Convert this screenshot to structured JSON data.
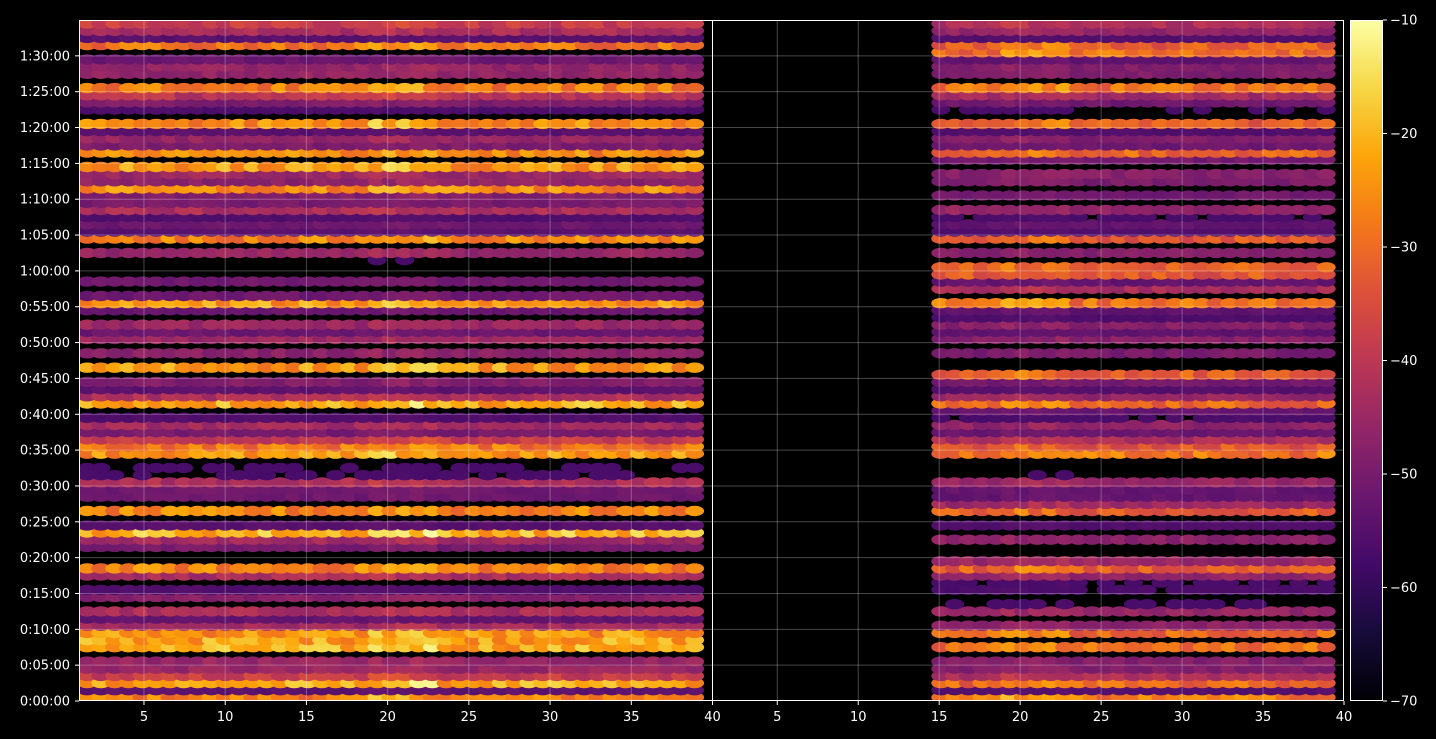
{
  "chart_data": {
    "type": "heatmap",
    "title": "",
    "xlabel": "",
    "ylabel": "",
    "grid": true,
    "panels": [
      {
        "name": "",
        "x_range": [
          1,
          40
        ],
        "x_ticks": [
          5,
          10,
          15,
          20,
          25,
          30,
          35,
          40
        ],
        "x_tick_labels": [
          "5",
          "10",
          "15",
          "20",
          "25",
          "30",
          "35",
          "40"
        ],
        "active_x_start": 1.5,
        "active_x_end": 39.5,
        "brightness": 1.0
      },
      {
        "name": "",
        "x_range": [
          1,
          40
        ],
        "x_ticks": [
          5,
          10,
          15,
          20,
          25,
          30,
          35,
          40
        ],
        "x_tick_labels": [
          "5",
          "10",
          "15",
          "20",
          "25",
          "30",
          "35",
          "40"
        ],
        "active_x_start": 15,
        "active_x_end": 39.5,
        "brightness": 0.82
      }
    ],
    "y_range_seconds": [
      0,
      5700
    ],
    "y_ticks_seconds": [
      0,
      300,
      600,
      900,
      1200,
      1500,
      1800,
      2100,
      2400,
      2700,
      3000,
      3300,
      3600,
      3900,
      4200,
      4500,
      4800,
      5100,
      5400
    ],
    "y_tick_labels": [
      "0:00:00",
      "0:05:00",
      "0:10:00",
      "0:15:00",
      "0:20:00",
      "0:25:00",
      "0:30:00",
      "0:35:00",
      "0:40:00",
      "0:45:00",
      "0:50:00",
      "0:55:00",
      "1:00:00",
      "1:05:00",
      "1:10:00",
      "1:15:00",
      "1:20:00",
      "1:25:00",
      "1:30:00"
    ],
    "bright_bands_seconds": [
      0,
      120,
      420,
      510,
      1080,
      1380,
      1560,
      2040,
      2100,
      2460,
      2700,
      2760,
      3300,
      3540,
      3600,
      3840,
      4260,
      4440,
      4560,
      4800,
      5100,
      5400,
      5460
    ],
    "colorbar": {
      "colormap": "inferno",
      "min": -70,
      "max": -10,
      "ticks": [
        -70,
        -60,
        -50,
        -40,
        -30,
        -20,
        -10
      ],
      "tick_labels": [
        "−70",
        "−60",
        "−50",
        "−40",
        "−30",
        "−20",
        "−10"
      ]
    }
  }
}
